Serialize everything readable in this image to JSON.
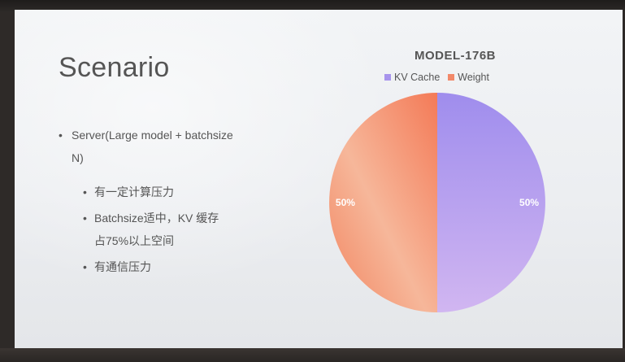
{
  "slide": {
    "title": "Scenario",
    "bullets": {
      "main": "Server(Large model + batchsize N)",
      "subs": [
        "有一定计算压力",
        "Batchsize适中，KV 缓存占75%以上空间",
        "有通信压力"
      ]
    }
  },
  "chart_data": {
    "type": "pie",
    "title": "MODEL-176B",
    "legend_position": "top",
    "slices": [
      {
        "name": "KV Cache",
        "value": 50,
        "label": "50%",
        "color": "#a794ec"
      },
      {
        "name": "Weight",
        "value": 50,
        "label": "50%",
        "color": "#f2896a"
      }
    ]
  }
}
